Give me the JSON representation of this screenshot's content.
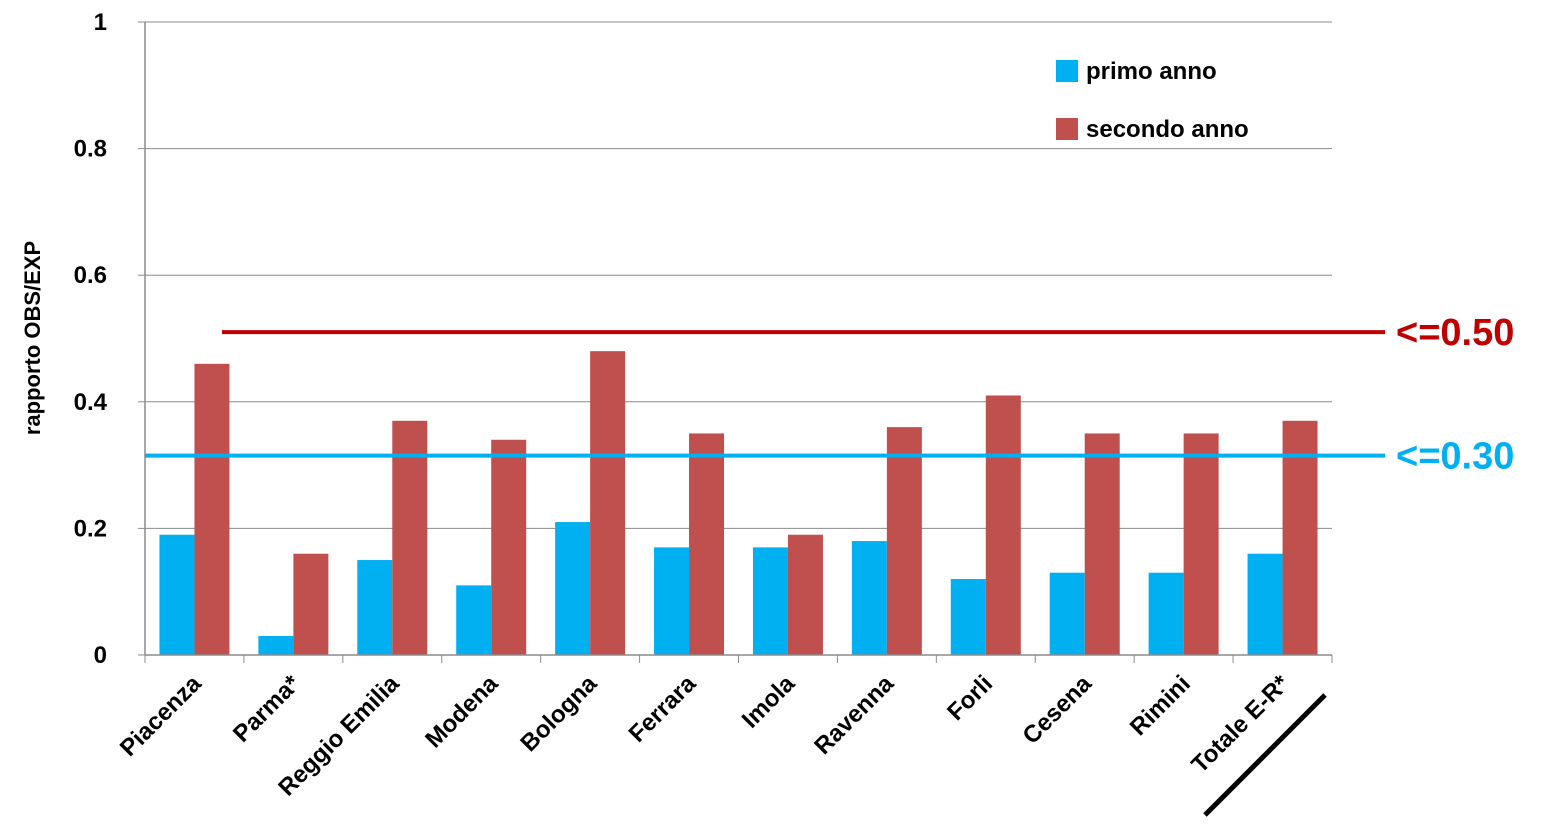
{
  "chart_data": {
    "type": "bar",
    "title": "",
    "xlabel": "",
    "ylabel": "rapporto OBS/EXP",
    "ylim": [
      0,
      1
    ],
    "yticks": [
      "0",
      "0.2",
      "0.4",
      "0.6",
      "0.8",
      "1"
    ],
    "grid": true,
    "legend_position": "top-right",
    "categories": [
      "Piacenza",
      "Parma*",
      "Reggio Emilia",
      "Modena",
      "Bologna",
      "Ferrara",
      "Imola",
      "Ravenna",
      "Forli",
      "Cesena",
      "Rimini",
      "Totale E-R*"
    ],
    "series": [
      {
        "name": "primo anno",
        "color": "#00b0f0",
        "values": [
          0.19,
          0.03,
          0.15,
          0.11,
          0.21,
          0.17,
          0.17,
          0.18,
          0.12,
          0.13,
          0.13,
          0.16
        ]
      },
      {
        "name": "secondo anno",
        "color": "#c0504d",
        "values": [
          0.46,
          0.16,
          0.37,
          0.34,
          0.48,
          0.35,
          0.19,
          0.36,
          0.41,
          0.35,
          0.35,
          0.37
        ]
      }
    ],
    "reference_lines": [
      {
        "label": "<=0.50",
        "value": 0.51,
        "color": "#c00000"
      },
      {
        "label": "<=0.30",
        "value": 0.315,
        "color": "#00b0f0"
      }
    ],
    "annotations": [
      "underline below Totale E-R*"
    ]
  }
}
